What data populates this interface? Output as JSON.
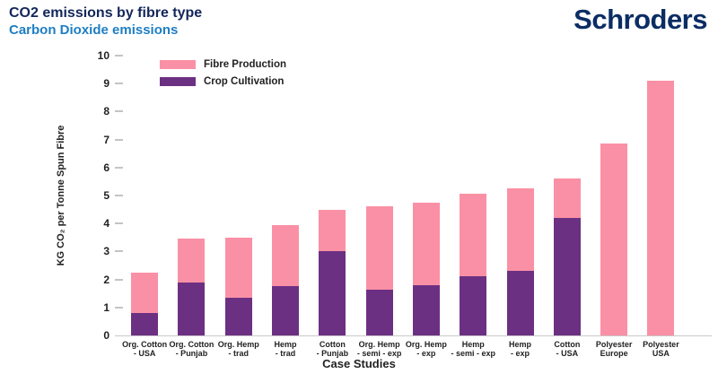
{
  "header": {
    "title": "CO2 emissions by fibre type",
    "subtitle": "Carbon Dioxide emissions",
    "logo": "Schroders"
  },
  "colors": {
    "title_text": "#13265B",
    "subtitle_text": "#1E7EC3",
    "logo_text": "#0B2D64",
    "fibre_production": "#FA90A5",
    "crop_cultivation": "#6C3083",
    "axis_line": "#C9C9C9",
    "tick_text": "#222222"
  },
  "chart_data": {
    "type": "bar",
    "stacked": true,
    "title": "",
    "xlabel": "Case Studies",
    "ylabel": "KG CO₂ per Tonne Spun Fibre",
    "ylim": [
      0,
      10
    ],
    "ytick_step": 1,
    "grid": false,
    "legend_position": "top-left-inside",
    "legend": [
      {
        "label": "Fibre Production",
        "color": "#FA90A5"
      },
      {
        "label": "Crop Cultivation",
        "color": "#6C3083"
      }
    ],
    "categories": [
      {
        "line1": "Org. Cotton",
        "line2": "- USA"
      },
      {
        "line1": "Org. Cotton",
        "line2": "- Punjab"
      },
      {
        "line1": "Org. Hemp",
        "line2": "- trad"
      },
      {
        "line1": "Hemp",
        "line2": "- trad"
      },
      {
        "line1": "Cotton",
        "line2": "- Punjab"
      },
      {
        "line1": "Org. Hemp",
        "line2": "- semi - exp"
      },
      {
        "line1": "Org. Hemp",
        "line2": "- exp"
      },
      {
        "line1": "Hemp",
        "line2": "- semi - exp"
      },
      {
        "line1": "Hemp",
        "line2": "- exp"
      },
      {
        "line1": "Cotton",
        "line2": "- USA"
      },
      {
        "line1": "Polyester",
        "line2": "Europe"
      },
      {
        "line1": "Polyester",
        "line2": "USA"
      }
    ],
    "series": [
      {
        "name": "Crop Cultivation",
        "values": [
          0.8,
          1.9,
          1.35,
          1.75,
          3.0,
          1.65,
          1.8,
          2.1,
          2.3,
          4.2,
          0,
          0
        ]
      },
      {
        "name": "Fibre Production",
        "values": [
          1.45,
          1.55,
          2.15,
          2.2,
          1.5,
          2.95,
          2.95,
          2.95,
          2.95,
          1.4,
          6.85,
          9.1
        ]
      }
    ],
    "stack_totals": [
      2.25,
      3.45,
      3.5,
      3.95,
      4.5,
      4.6,
      4.75,
      5.05,
      5.25,
      5.6,
      6.85,
      9.1
    ]
  }
}
